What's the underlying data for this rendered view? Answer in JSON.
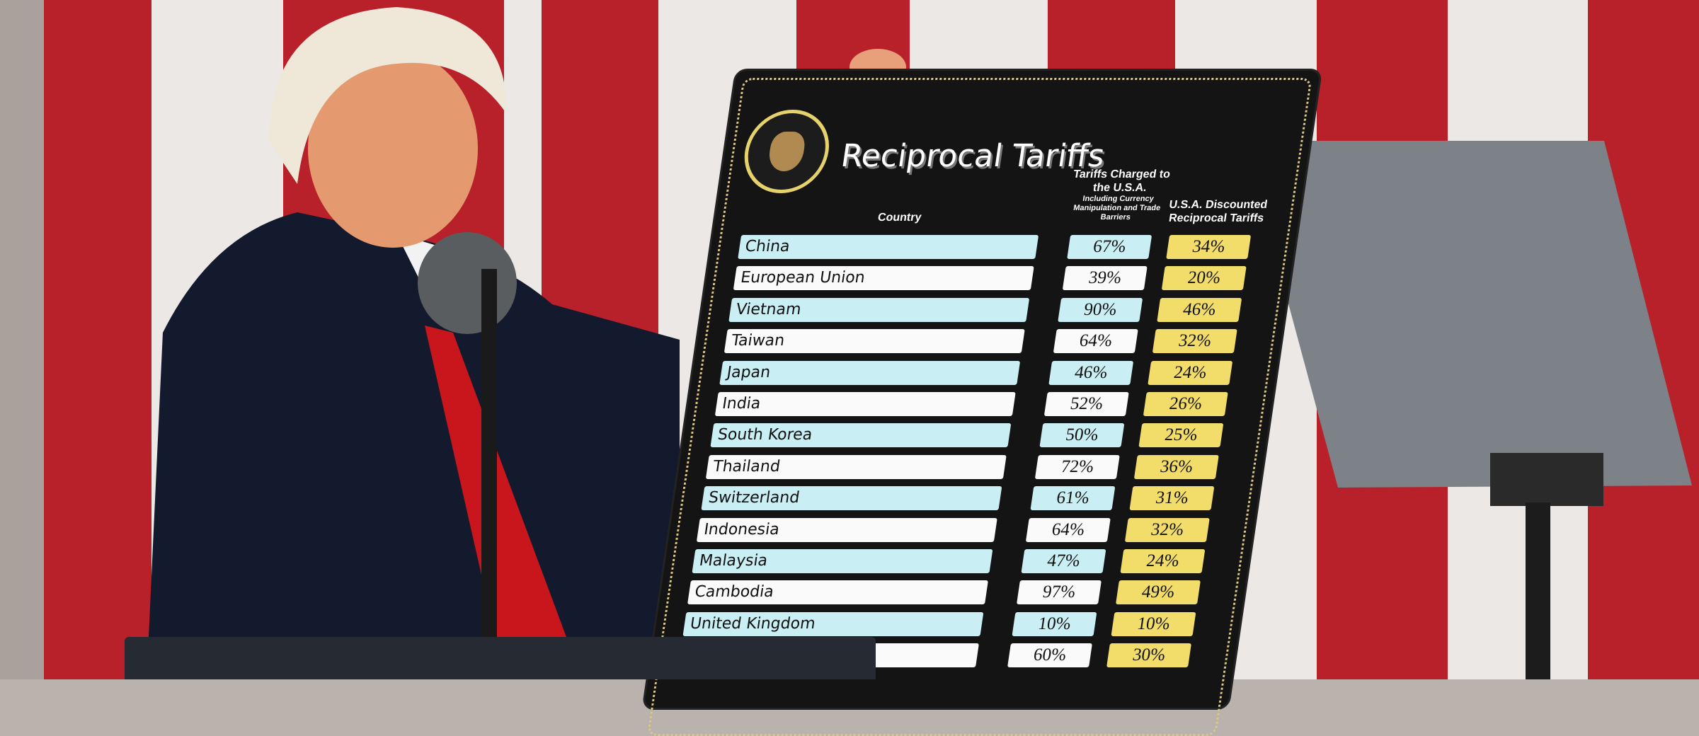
{
  "board": {
    "seal_text": "SEAL OF THE PRESIDENT OF THE UNITED STATES",
    "title": "Reciprocal Tariffs",
    "col_country": "Country",
    "col_charged": "Tariffs Charged to the U.S.A.",
    "col_charged_note": "Including Currency Manipulation and Trade Barriers",
    "col_discounted": "U.S.A. Discounted Reciprocal Tariffs",
    "rows": [
      {
        "country": "China",
        "charged": "67%",
        "reciprocal": "34%"
      },
      {
        "country": "European Union",
        "charged": "39%",
        "reciprocal": "20%"
      },
      {
        "country": "Vietnam",
        "charged": "90%",
        "reciprocal": "46%"
      },
      {
        "country": "Taiwan",
        "charged": "64%",
        "reciprocal": "32%"
      },
      {
        "country": "Japan",
        "charged": "46%",
        "reciprocal": "24%"
      },
      {
        "country": "India",
        "charged": "52%",
        "reciprocal": "26%"
      },
      {
        "country": "South Korea",
        "charged": "50%",
        "reciprocal": "25%"
      },
      {
        "country": "Thailand",
        "charged": "72%",
        "reciprocal": "36%"
      },
      {
        "country": "Switzerland",
        "charged": "61%",
        "reciprocal": "31%"
      },
      {
        "country": "Indonesia",
        "charged": "64%",
        "reciprocal": "32%"
      },
      {
        "country": "Malaysia",
        "charged": "47%",
        "reciprocal": "24%"
      },
      {
        "country": "Cambodia",
        "charged": "97%",
        "reciprocal": "49%"
      },
      {
        "country": "United Kingdom",
        "charged": "10%",
        "reciprocal": "10%"
      },
      {
        "country": "",
        "charged": "60%",
        "reciprocal": "30%"
      }
    ]
  },
  "colors": {
    "flag_red": "#b8202a",
    "flag_white": "#ece8e6",
    "board": "#141414",
    "row_blue": "#c9eef3",
    "row_yellow": "#f3dd6a",
    "teleprompter": "#7d8288"
  }
}
